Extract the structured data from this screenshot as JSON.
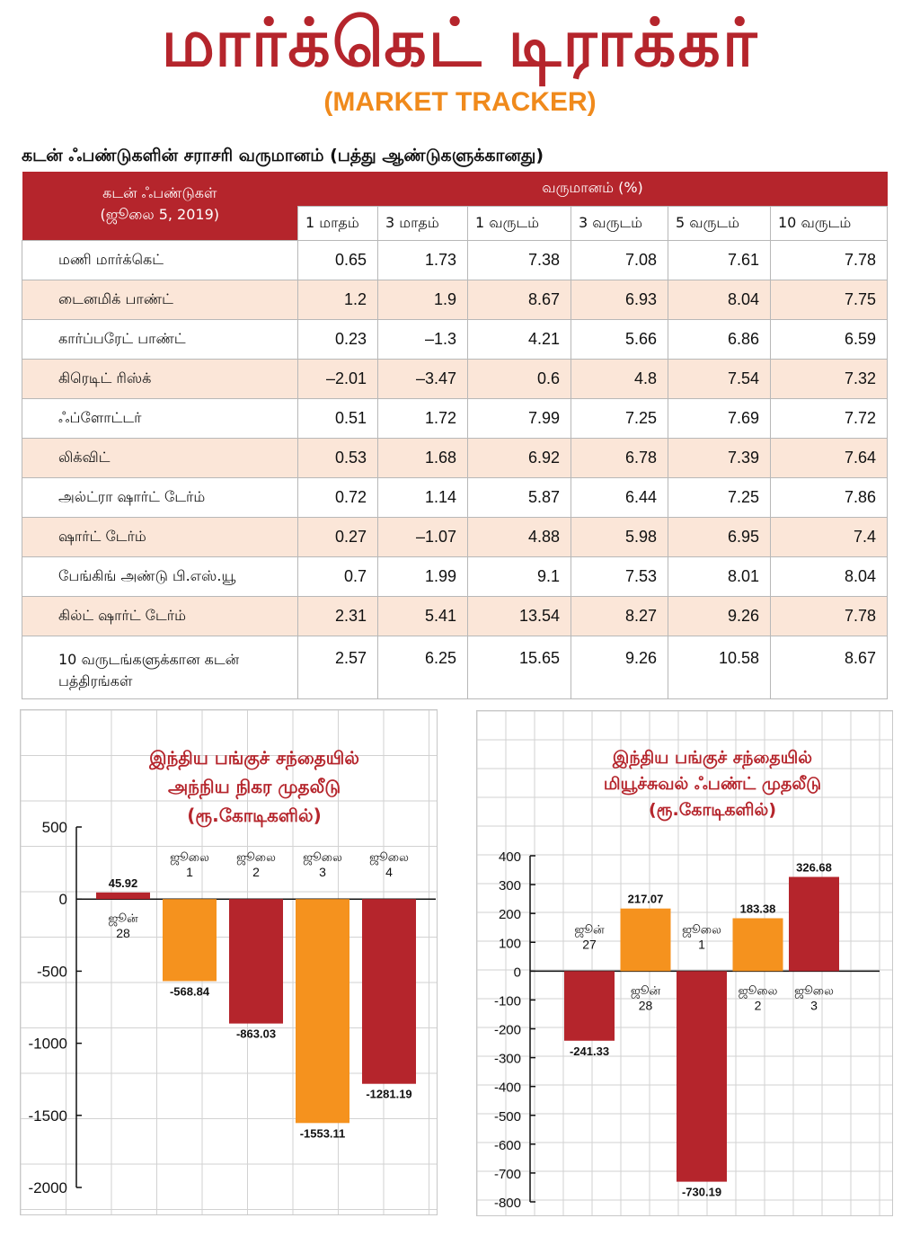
{
  "header": {
    "title_tamil": "மார்க்கெட் டிராக்கர்",
    "title_english": "(MARKET TRACKER)"
  },
  "table": {
    "heading": "கடன் ஃபண்டுகளின் சராசரி வருமானம் (பத்து ஆண்டுகளுக்கானது)",
    "corner_line1": "கடன் ஃபண்டுகள்",
    "corner_line2": "(ஜூலை 5, 2019)",
    "returns_header": "வருமானம் (%)",
    "periods": [
      "1 மாதம்",
      "3 மாதம்",
      "1 வருடம்",
      "3 வருடம்",
      "5 வருடம்",
      "10 வருடம்"
    ],
    "rows": [
      {
        "name": "மணி மார்க்கெட்",
        "values": [
          "0.65",
          "1.73",
          "7.38",
          "7.08",
          "7.61",
          "7.78"
        ]
      },
      {
        "name": "டைனமிக் பாண்ட்",
        "values": [
          "1.2",
          "1.9",
          "8.67",
          "6.93",
          "8.04",
          "7.75"
        ]
      },
      {
        "name": "கார்ப்பரேட் பாண்ட்",
        "values": [
          "0.23",
          "–1.3",
          "4.21",
          "5.66",
          "6.86",
          "6.59"
        ]
      },
      {
        "name": "கிரெடிட் ரிஸ்க்",
        "values": [
          "–2.01",
          "–3.47",
          "0.6",
          "4.8",
          "7.54",
          "7.32"
        ]
      },
      {
        "name": "ஃப்ளோட்டர்",
        "values": [
          "0.51",
          "1.72",
          "7.99",
          "7.25",
          "7.69",
          "7.72"
        ]
      },
      {
        "name": "லிக்விட்",
        "values": [
          "0.53",
          "1.68",
          "6.92",
          "6.78",
          "7.39",
          "7.64"
        ]
      },
      {
        "name": "அல்ட்ரா ஷார்ட் டேர்ம்",
        "values": [
          "0.72",
          "1.14",
          "5.87",
          "6.44",
          "7.25",
          "7.86"
        ]
      },
      {
        "name": "ஷார்ட் டேர்ம்",
        "values": [
          "0.27",
          "–1.07",
          "4.88",
          "5.98",
          "6.95",
          "7.4"
        ]
      },
      {
        "name": "பேங்கிங் அண்டு பி.எஸ்.யூ",
        "values": [
          "0.7",
          "1.99",
          "9.1",
          "7.53",
          "8.01",
          "8.04"
        ]
      },
      {
        "name": "கில்ட் ஷார்ட் டேர்ம்",
        "values": [
          "2.31",
          "5.41",
          "13.54",
          "8.27",
          "9.26",
          "7.78"
        ]
      }
    ],
    "last_row": {
      "name_line1": "10 வருடங்களுக்கான கடன்",
      "name_line2": "பத்திரங்கள்",
      "values": [
        "2.57",
        "6.25",
        "15.65",
        "9.26",
        "10.58",
        "8.67"
      ]
    }
  },
  "colors": {
    "brand_red": "#b5252c",
    "orange": "#f5921e",
    "row_alt": "#fbe6d8"
  },
  "chart_data": [
    {
      "type": "bar",
      "title": [
        "இந்திய பங்குச் சந்தையில்",
        "அந்நிய நிகர முதலீடு",
        "(ரூ.கோடிகளில்)"
      ],
      "categories": [
        [
          "ஜூன்",
          "28"
        ],
        [
          "ஜூலை",
          "1"
        ],
        [
          "ஜூலை",
          "2"
        ],
        [
          "ஜூலை",
          "3"
        ],
        [
          "ஜூலை",
          "4"
        ]
      ],
      "values": [
        45.92,
        -568.84,
        -863.03,
        -1553.11,
        -1281.19
      ],
      "value_labels": [
        "45.92",
        "-568.84",
        "-863.03",
        "-1553.11",
        "-1281.19"
      ],
      "bar_colors": [
        "#b5252c",
        "#f5921e",
        "#b5252c",
        "#f5921e",
        "#b5252c"
      ],
      "yticks": [
        "500",
        "0",
        "-500",
        "-1000",
        "-1500",
        "-2000"
      ],
      "ylim": [
        -2000,
        500
      ],
      "grid": true
    },
    {
      "type": "bar",
      "title": [
        "இந்திய பங்குச் சந்தையில்",
        "மியூச்சுவல் ஃபண்ட் முதலீடு",
        "(ரூ.கோடிகளில்)"
      ],
      "categories": [
        [
          "ஜூன்",
          "27"
        ],
        [
          "ஜூன்",
          "28"
        ],
        [
          "ஜூலை",
          "1"
        ],
        [
          "ஜூலை",
          "2"
        ],
        [
          "ஜூலை",
          "3"
        ]
      ],
      "values": [
        -241.33,
        217.07,
        -730.19,
        183.38,
        326.68
      ],
      "value_labels": [
        "-241.33",
        "217.07",
        "-730.19",
        "183.38",
        "326.68"
      ],
      "bar_colors": [
        "#b5252c",
        "#f5921e",
        "#b5252c",
        "#f5921e",
        "#b5252c"
      ],
      "yticks": [
        "400",
        "300",
        "200",
        "100",
        "0",
        "-100",
        "-200",
        "-300",
        "-400",
        "-500",
        "-600",
        "-700",
        "-800"
      ],
      "ylim": [
        -800,
        400
      ],
      "grid": true
    }
  ]
}
